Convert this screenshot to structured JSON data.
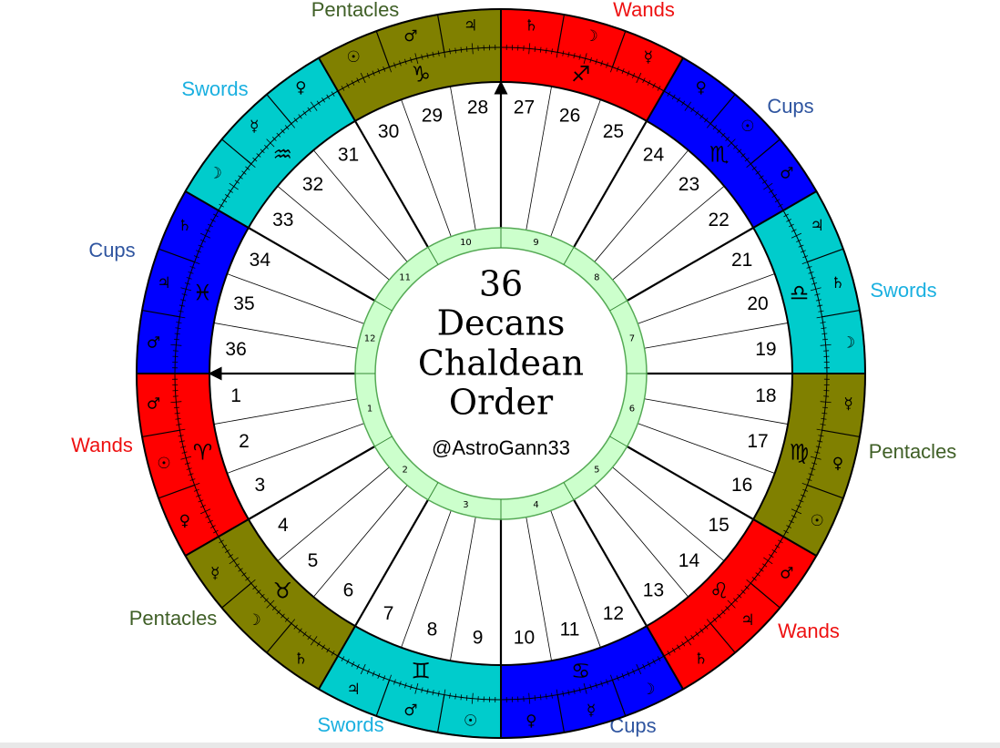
{
  "center": {
    "lines": [
      "36",
      "Decans",
      "Chaldean",
      "Order"
    ],
    "handle": "@AstroGann33"
  },
  "decan_numbers": [
    "1",
    "2",
    "3",
    "4",
    "5",
    "6",
    "7",
    "8",
    "9",
    "10",
    "11",
    "12",
    "13",
    "14",
    "15",
    "16",
    "17",
    "18",
    "19",
    "20",
    "21",
    "22",
    "23",
    "24",
    "25",
    "26",
    "27",
    "28",
    "29",
    "30",
    "31",
    "32",
    "33",
    "34",
    "35",
    "36"
  ],
  "houses": [
    "1",
    "2",
    "3",
    "4",
    "5",
    "6",
    "7",
    "8",
    "9",
    "10",
    "11",
    "12"
  ],
  "signs": [
    {
      "glyph": "♈︎",
      "suit": "Wands",
      "color": "#ff0000",
      "suit_color": "#ee1111",
      "planets": [
        "♂",
        "☉",
        "♀"
      ]
    },
    {
      "glyph": "♉︎",
      "suit": "Pentacles",
      "color": "#808000",
      "suit_color": "#3f5f26",
      "planets": [
        "☿",
        "☽",
        "♄"
      ]
    },
    {
      "glyph": "♊︎",
      "suit": "Swords",
      "color": "#00cccc",
      "suit_color": "#1ab0e0",
      "planets": [
        "♃",
        "♂",
        "☉"
      ]
    },
    {
      "glyph": "♋︎",
      "suit": "Cups",
      "color": "#0000ff",
      "suit_color": "#2f55a0",
      "planets": [
        "♀",
        "☿",
        "☽"
      ]
    },
    {
      "glyph": "♌︎",
      "suit": "Wands",
      "color": "#ff0000",
      "suit_color": "#ee1111",
      "planets": [
        "♄",
        "♃",
        "♂"
      ]
    },
    {
      "glyph": "♍︎",
      "suit": "Pentacles",
      "color": "#808000",
      "suit_color": "#3f5f26",
      "planets": [
        "☉",
        "♀",
        "☿"
      ]
    },
    {
      "glyph": "♎︎",
      "suit": "Swords",
      "color": "#00cccc",
      "suit_color": "#1ab0e0",
      "planets": [
        "☽",
        "♄",
        "♃"
      ]
    },
    {
      "glyph": "♏︎",
      "suit": "Cups",
      "color": "#0000ff",
      "suit_color": "#2f55a0",
      "planets": [
        "♂",
        "☉",
        "♀"
      ]
    },
    {
      "glyph": "♐︎",
      "suit": "Wands",
      "color": "#ff0000",
      "suit_color": "#ee1111",
      "planets": [
        "☿",
        "☽",
        "♄"
      ]
    },
    {
      "glyph": "♑︎",
      "suit": "Pentacles",
      "color": "#808000",
      "suit_color": "#3f5f26",
      "planets": [
        "♃",
        "♂",
        "☉"
      ]
    },
    {
      "glyph": "♒︎",
      "suit": "Swords",
      "color": "#00cccc",
      "suit_color": "#1ab0e0",
      "planets": [
        "♀",
        "☿",
        "☽"
      ]
    },
    {
      "glyph": "♓︎",
      "suit": "Cups",
      "color": "#0000ff",
      "suit_color": "#2f55a0",
      "planets": [
        "♄",
        "♃",
        "♂"
      ]
    }
  ]
}
